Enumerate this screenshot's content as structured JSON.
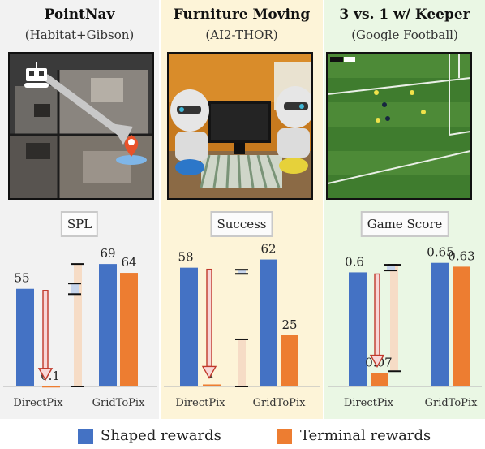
{
  "colors": {
    "shaped": "#4472c4",
    "terminal": "#ed7d31",
    "panel1_bg": "#f2f2f2",
    "panel2_bg": "#fdf4d8",
    "panel3_bg": "#eaf7e4"
  },
  "legend": {
    "shaped": "Shaped rewards",
    "terminal": "Terminal rewards"
  },
  "panels": [
    {
      "title": "PointNav",
      "subtitle": "(Habitat+Gibson)",
      "metric": "SPL",
      "scene": "top-down-floorplan-with-robot-and-goal-pin"
    },
    {
      "title": "Furniture Moving",
      "subtitle": "(AI2-THOR)",
      "metric": "Success",
      "scene": "two-robots-moving-tv-in-living-room"
    },
    {
      "title": "3 vs. 1 w/ Keeper",
      "subtitle": "(Google Football)",
      "metric": "Game Score",
      "scene": "football-pitch-with-players"
    }
  ],
  "chart_data": [
    {
      "type": "bar",
      "title": "SPL",
      "categories": [
        "DirectPix",
        "GridToPix"
      ],
      "series": [
        {
          "name": "Shaped rewards",
          "values": [
            55,
            69
          ]
        },
        {
          "name": "Terminal rewards",
          "values": [
            0.1,
            64
          ]
        }
      ],
      "labels": {
        "shaped": [
          "55",
          "69"
        ],
        "terminal": [
          "0.1",
          "64"
        ]
      },
      "ylim": [
        0,
        75
      ],
      "drop_arrow": {
        "from": 55,
        "to": 0.1
      },
      "error_bars": {
        "shaped": [
          52,
          58
        ],
        "terminal": [
          0,
          69
        ]
      }
    },
    {
      "type": "bar",
      "title": "Success",
      "categories": [
        "DirectPix",
        "GridToPix"
      ],
      "series": [
        {
          "name": "Shaped rewards",
          "values": [
            58,
            62
          ]
        },
        {
          "name": "Terminal rewards",
          "values": [
            1,
            25
          ]
        }
      ],
      "labels": {
        "shaped": [
          "58",
          "62"
        ],
        "terminal": [
          "1",
          "25"
        ]
      },
      "ylim": [
        0,
        65
      ],
      "drop_arrow": {
        "from": 58,
        "to": 1
      },
      "error_bars": {
        "shaped": [
          55,
          57
        ],
        "terminal": [
          0,
          23
        ]
      }
    },
    {
      "type": "bar",
      "title": "Game Score",
      "categories": [
        "DirectPix",
        "GridToPix"
      ],
      "series": [
        {
          "name": "Shaped rewards",
          "values": [
            0.6,
            0.65
          ]
        },
        {
          "name": "Terminal rewards",
          "values": [
            0.07,
            0.63
          ]
        }
      ],
      "labels": {
        "shaped": [
          "0.6",
          "0.65"
        ],
        "terminal": [
          "0.07",
          "0.63"
        ]
      },
      "ylim": [
        0,
        0.7
      ],
      "drop_arrow": {
        "from": 0.6,
        "to": 0.07
      },
      "error_bars": {
        "shaped": [
          0.61,
          0.64
        ],
        "terminal": [
          0.08,
          0.64
        ]
      }
    }
  ]
}
